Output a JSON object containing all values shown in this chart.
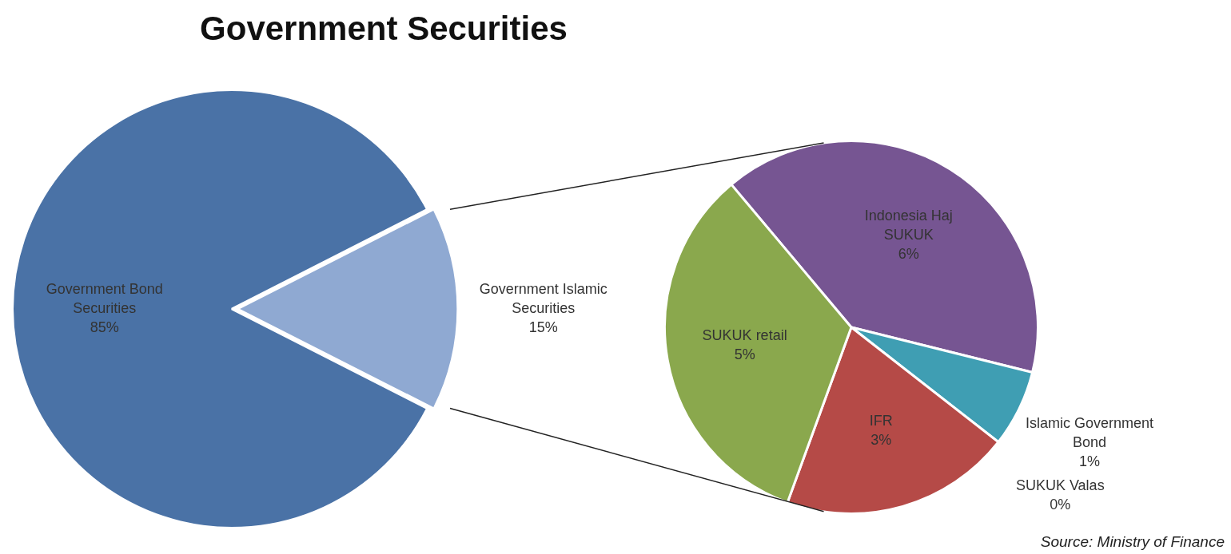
{
  "chart_data": [
    {
      "type": "pie",
      "title": "Government Securities",
      "categories": [
        "Government Bond Securities",
        "Government Islamic Securities"
      ],
      "values": [
        85,
        15
      ],
      "value_labels": [
        "85%",
        "15%"
      ],
      "colors": [
        "#4a72a6",
        "#8fa9d2"
      ],
      "legend": false
    },
    {
      "type": "pie",
      "categories": [
        "Indonesia Haj SUKUK",
        "Islamic Government Bond",
        "SUKUK Valas",
        "IFR",
        "SUKUK retail"
      ],
      "values": [
        6,
        1,
        0,
        3,
        5
      ],
      "value_labels": [
        "6%",
        "1%",
        "0%",
        "3%",
        "5%"
      ],
      "colors": [
        "#765592",
        "#3f9eb3",
        "#2f7f95",
        "#b54a47",
        "#8aa84d"
      ],
      "legend": false,
      "annotations": [
        "Source: Ministry of Finance"
      ]
    }
  ]
}
